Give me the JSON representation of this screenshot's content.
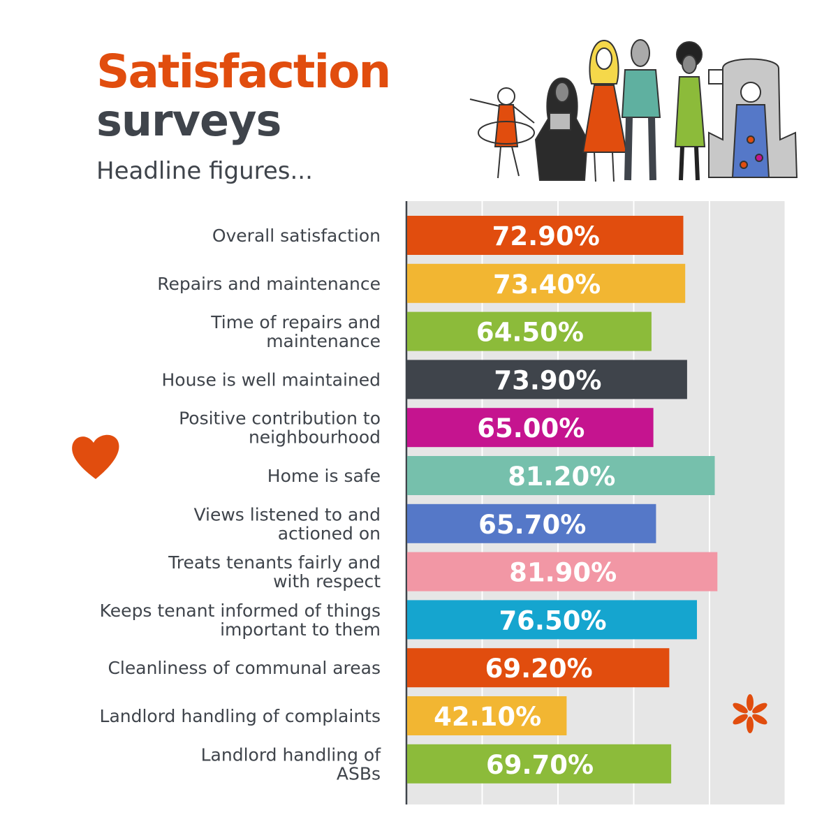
{
  "header": {
    "title_line1": "Satisfaction",
    "title_line2": "surveys",
    "subtitle": "Headline figures..."
  },
  "colors": {
    "title_orange": "#e14d0e",
    "dark_text": "#3f444b",
    "plot_background": "#e6e6e6"
  },
  "chart_data": {
    "type": "bar",
    "orientation": "horizontal",
    "categories": [
      "Overall satisfaction",
      "Repairs and maintenance",
      "Time of repairs and\nmaintenance",
      "House is well maintained",
      "Positive contribution to\nneighbourhood",
      "Home is safe",
      "Views listened to and\nactioned on",
      "Treats tenants fairly and\nwith respect",
      "Keeps tenant informed of things\nimportant to them",
      "Cleanliness of communal areas",
      "Landlord handling of complaints",
      "Landlord handling of\nASBs"
    ],
    "values": [
      72.9,
      73.4,
      64.5,
      73.9,
      65.0,
      81.2,
      65.7,
      81.9,
      76.5,
      69.2,
      42.1,
      69.7
    ],
    "value_labels": [
      "72.90%",
      "73.40%",
      "64.50%",
      "73.90%",
      "65.00%",
      "81.20%",
      "65.70%",
      "81.90%",
      "76.50%",
      "69.20%",
      "42.10%",
      "69.70%"
    ],
    "bar_colors": [
      "#e14d0e",
      "#f2b632",
      "#8cbb3a",
      "#3f444b",
      "#c5148f",
      "#76c0ac",
      "#5578c8",
      "#f297a5",
      "#15a5cf",
      "#e14d0e",
      "#f2b632",
      "#8cbb3a"
    ],
    "xlim": [
      0,
      100
    ],
    "grid": true
  }
}
